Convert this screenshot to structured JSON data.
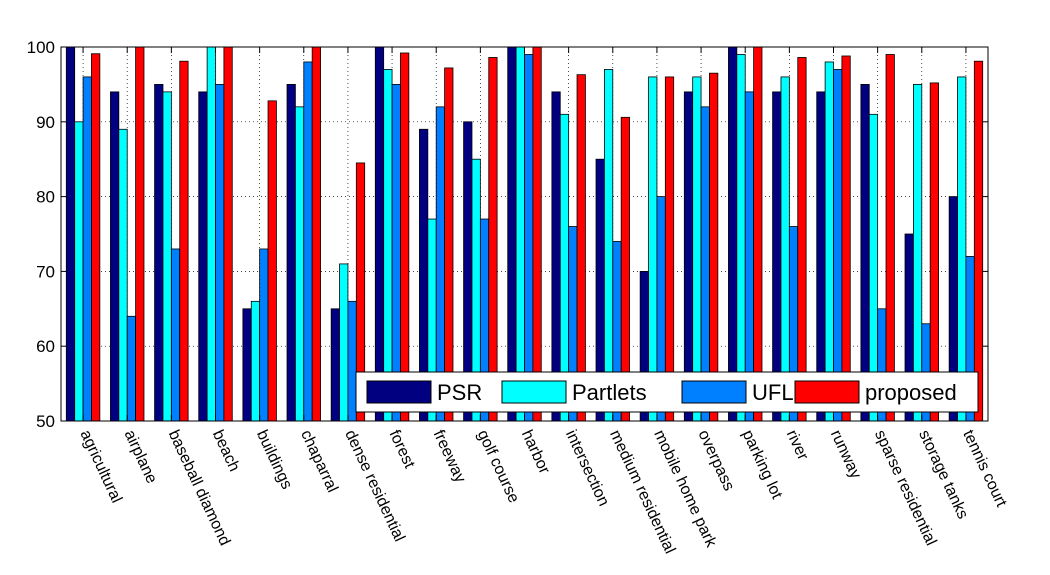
{
  "chart_data": {
    "type": "bar",
    "title": "",
    "xlabel": "",
    "ylabel": "",
    "ylim": [
      50,
      100
    ],
    "yticks": [
      50,
      60,
      70,
      80,
      90,
      100
    ],
    "grid": true,
    "legend_position": "bottom-right",
    "categories": [
      "agricultural",
      "airplane",
      "baseball diamond",
      "beach",
      "buildings",
      "chaparral",
      "dense residential",
      "forest",
      "freeway",
      "golf course",
      "harbor",
      "intersection",
      "medium residential",
      "mobile home park",
      "overpass",
      "parking lot",
      "river",
      "runway",
      "sparse residential",
      "storage tanks",
      "tennis court"
    ],
    "series": [
      {
        "name": "PSR",
        "color": "#000080",
        "values": [
          100,
          94,
          95,
          94,
          65,
          95,
          65,
          100,
          89,
          90,
          100,
          94,
          85,
          70,
          94,
          100,
          94,
          94,
          95,
          75,
          80
        ]
      },
      {
        "name": "Partlets",
        "color": "#00FFFF",
        "values": [
          90,
          89,
          94,
          100,
          66,
          92,
          71,
          97,
          77,
          85,
          100,
          91,
          97,
          96,
          96,
          99,
          96,
          98,
          91,
          95,
          96
        ]
      },
      {
        "name": "UFL",
        "color": "#0080FF",
        "values": [
          96,
          64,
          73,
          95,
          73,
          98,
          66,
          95,
          92,
          77,
          99,
          76,
          74,
          80,
          92,
          94,
          76,
          97,
          65,
          63,
          72
        ]
      },
      {
        "name": "proposed",
        "color": "#FF0000",
        "values": [
          99.1,
          100,
          98.1,
          100,
          92.8,
          100,
          84.5,
          99.2,
          97.2,
          98.6,
          100,
          96.3,
          90.6,
          96,
          96.5,
          100,
          98.6,
          98.8,
          99,
          95.2,
          98.1
        ]
      }
    ]
  }
}
